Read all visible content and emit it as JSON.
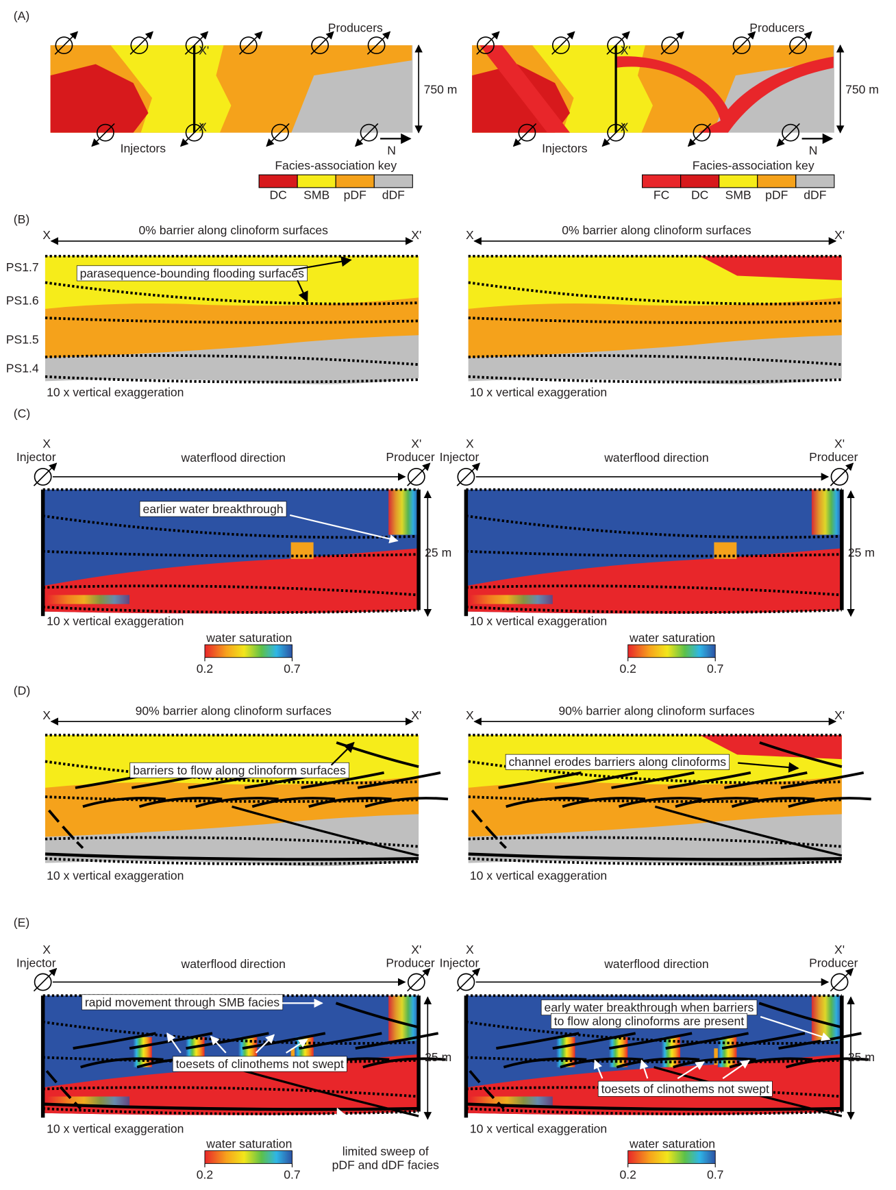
{
  "A": {
    "label": "(A)",
    "left": {
      "producers": "Producers",
      "injectors": "Injectors",
      "scale": "750 m",
      "north": "N",
      "x_top": "X'",
      "x_bottom": "X",
      "key_title": "Facies-association key",
      "key": [
        "DC",
        "SMB",
        "pDF",
        "dDF"
      ]
    },
    "right": {
      "producers": "Producers",
      "injectors": "Injectors",
      "scale": "750 m",
      "north": "N",
      "x_top": "X'",
      "x_bottom": "X",
      "key_title": "Facies-association key",
      "key": [
        "FC",
        "DC",
        "SMB",
        "pDF",
        "dDF"
      ]
    }
  },
  "B": {
    "label": "(B)",
    "left": {
      "x": "X",
      "x_prime": "X'",
      "title": "0% barrier along clinoform surfaces",
      "annotation": "parasequence-bounding flooding surfaces",
      "ps": [
        "PS1.7",
        "PS1.6",
        "PS1.5",
        "PS1.4"
      ],
      "exaggeration": "10 x vertical exaggeration"
    },
    "right": {
      "x": "X",
      "x_prime": "X'",
      "title": "0% barrier along clinoform surfaces",
      "exaggeration": "10 x vertical exaggeration"
    }
  },
  "C": {
    "label": "(C)",
    "left": {
      "x": "X",
      "injector": "Injector",
      "direction": "waterflood direction",
      "x_prime": "X'",
      "producer": "Producer",
      "scale": "25 m",
      "exaggeration": "10 x vertical exaggeration",
      "colorbar": {
        "title": "water saturation",
        "min": "0.2",
        "max": "0.7"
      },
      "annotation": "earlier water breakthrough"
    },
    "right": {
      "x": "X",
      "injector": "Injector",
      "direction": "waterflood direction",
      "x_prime": "X'",
      "producer": "Producer",
      "scale": "25 m",
      "exaggeration": "10 x vertical exaggeration",
      "colorbar": {
        "title": "water saturation",
        "min": "0.2",
        "max": "0.7"
      }
    }
  },
  "D": {
    "label": "(D)",
    "left": {
      "x": "X",
      "x_prime": "X'",
      "title": "90% barrier along clinoform surfaces",
      "annotation": "barriers to flow along clinoform surfaces",
      "exaggeration": "10 x vertical exaggeration"
    },
    "right": {
      "x": "X",
      "x_prime": "X'",
      "title": "90% barrier along clinoform surfaces",
      "annotation": "channel erodes barriers along clinoforms",
      "exaggeration": "10 x vertical exaggeration"
    }
  },
  "E": {
    "label": "(E)",
    "left": {
      "x": "X",
      "injector": "Injector",
      "direction": "waterflood direction",
      "x_prime": "X'",
      "producer": "Producer",
      "scale": "25 m",
      "exaggeration": "10 x vertical exaggeration",
      "colorbar": {
        "title": "water saturation",
        "min": "0.2",
        "max": "0.7"
      },
      "annotation_top": [
        "rapid movement through SMB facies"
      ],
      "annotation_toesets": "toesets of clinothems not swept",
      "annotation_bottom": [
        "limited sweep of",
        "pDF and dDF facies"
      ]
    },
    "right": {
      "x": "X",
      "injector": "Injector",
      "direction": "waterflood direction",
      "x_prime": "X'",
      "producer": "Producer",
      "scale": "25 m",
      "exaggeration": "10 x vertical exaggeration",
      "colorbar": {
        "title": "water saturation",
        "min": "0.2",
        "max": "0.7"
      },
      "annotation_top": [
        "early water breakthrough when barriers",
        "to flow along clinoforms are present"
      ],
      "annotation_toesets": "toesets of clinothems not swept"
    }
  }
}
